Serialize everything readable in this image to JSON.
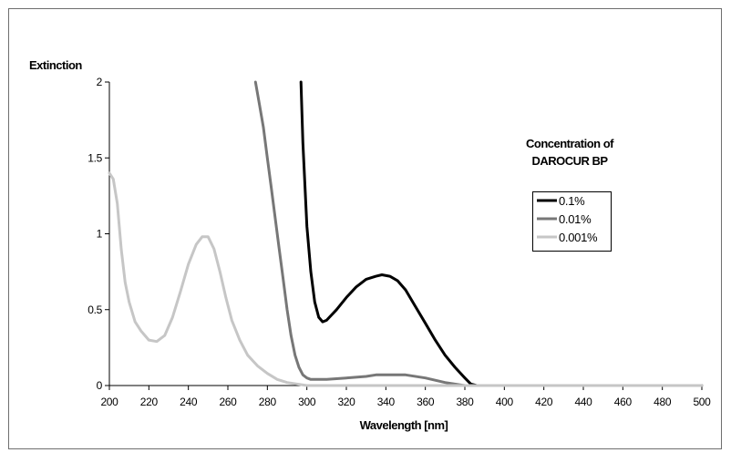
{
  "chart_data": {
    "type": "line",
    "title": "",
    "xlabel": "Wavelength [nm]",
    "ylabel": "Extinction",
    "xlim": [
      200,
      500
    ],
    "ylim": [
      0,
      2
    ],
    "xticks": [
      "200",
      "220",
      "240",
      "260",
      "280",
      "300",
      "320",
      "340",
      "360",
      "380",
      "400",
      "420",
      "440",
      "460",
      "480",
      "500"
    ],
    "yticks": [
      "0",
      "0.5",
      "1",
      "1.5",
      "2"
    ],
    "grid": false,
    "legend": {
      "title_lines": [
        "Concentration of",
        "DAROCUR BP"
      ],
      "placement": "right"
    },
    "series": [
      {
        "name": "0.1%",
        "color": "#000000",
        "x": [
          297,
          298,
          300,
          302,
          304,
          306,
          308,
          310,
          315,
          320,
          325,
          330,
          335,
          338,
          342,
          346,
          350,
          355,
          360,
          365,
          370,
          375,
          380,
          383,
          386,
          390,
          400,
          420,
          450,
          500
        ],
        "y": [
          2.0,
          1.6,
          1.05,
          0.75,
          0.55,
          0.45,
          0.42,
          0.43,
          0.5,
          0.58,
          0.65,
          0.7,
          0.72,
          0.73,
          0.72,
          0.69,
          0.63,
          0.52,
          0.41,
          0.3,
          0.2,
          0.12,
          0.05,
          0.01,
          0.0,
          0.0,
          0.0,
          0.0,
          0.0,
          0.0
        ]
      },
      {
        "name": "0.01%",
        "color": "#777777",
        "x": [
          274,
          276,
          278,
          280,
          282,
          284,
          286,
          288,
          290,
          292,
          294,
          296,
          298,
          300,
          302,
          305,
          310,
          320,
          330,
          335,
          340,
          350,
          360,
          370,
          380,
          390,
          400,
          450,
          500
        ],
        "y": [
          2.0,
          1.85,
          1.7,
          1.5,
          1.3,
          1.1,
          0.9,
          0.7,
          0.5,
          0.33,
          0.2,
          0.12,
          0.07,
          0.05,
          0.04,
          0.04,
          0.04,
          0.05,
          0.06,
          0.07,
          0.07,
          0.07,
          0.05,
          0.02,
          0.0,
          0.0,
          0.0,
          0.0,
          0.0
        ]
      },
      {
        "name": "0.001%",
        "color": "#c6c6c6",
        "x": [
          200,
          202,
          204,
          206,
          208,
          210,
          213,
          216,
          220,
          224,
          228,
          232,
          236,
          240,
          244,
          247,
          250,
          253,
          256,
          259,
          262,
          266,
          270,
          275,
          280,
          285,
          290,
          295,
          300,
          310,
          350,
          400,
          450,
          500
        ],
        "y": [
          1.4,
          1.36,
          1.2,
          0.9,
          0.68,
          0.55,
          0.42,
          0.36,
          0.3,
          0.29,
          0.33,
          0.45,
          0.62,
          0.8,
          0.93,
          0.98,
          0.98,
          0.9,
          0.75,
          0.58,
          0.43,
          0.3,
          0.2,
          0.13,
          0.08,
          0.04,
          0.02,
          0.01,
          0.0,
          0.0,
          0.0,
          0.0,
          0.0,
          0.0
        ]
      }
    ]
  }
}
